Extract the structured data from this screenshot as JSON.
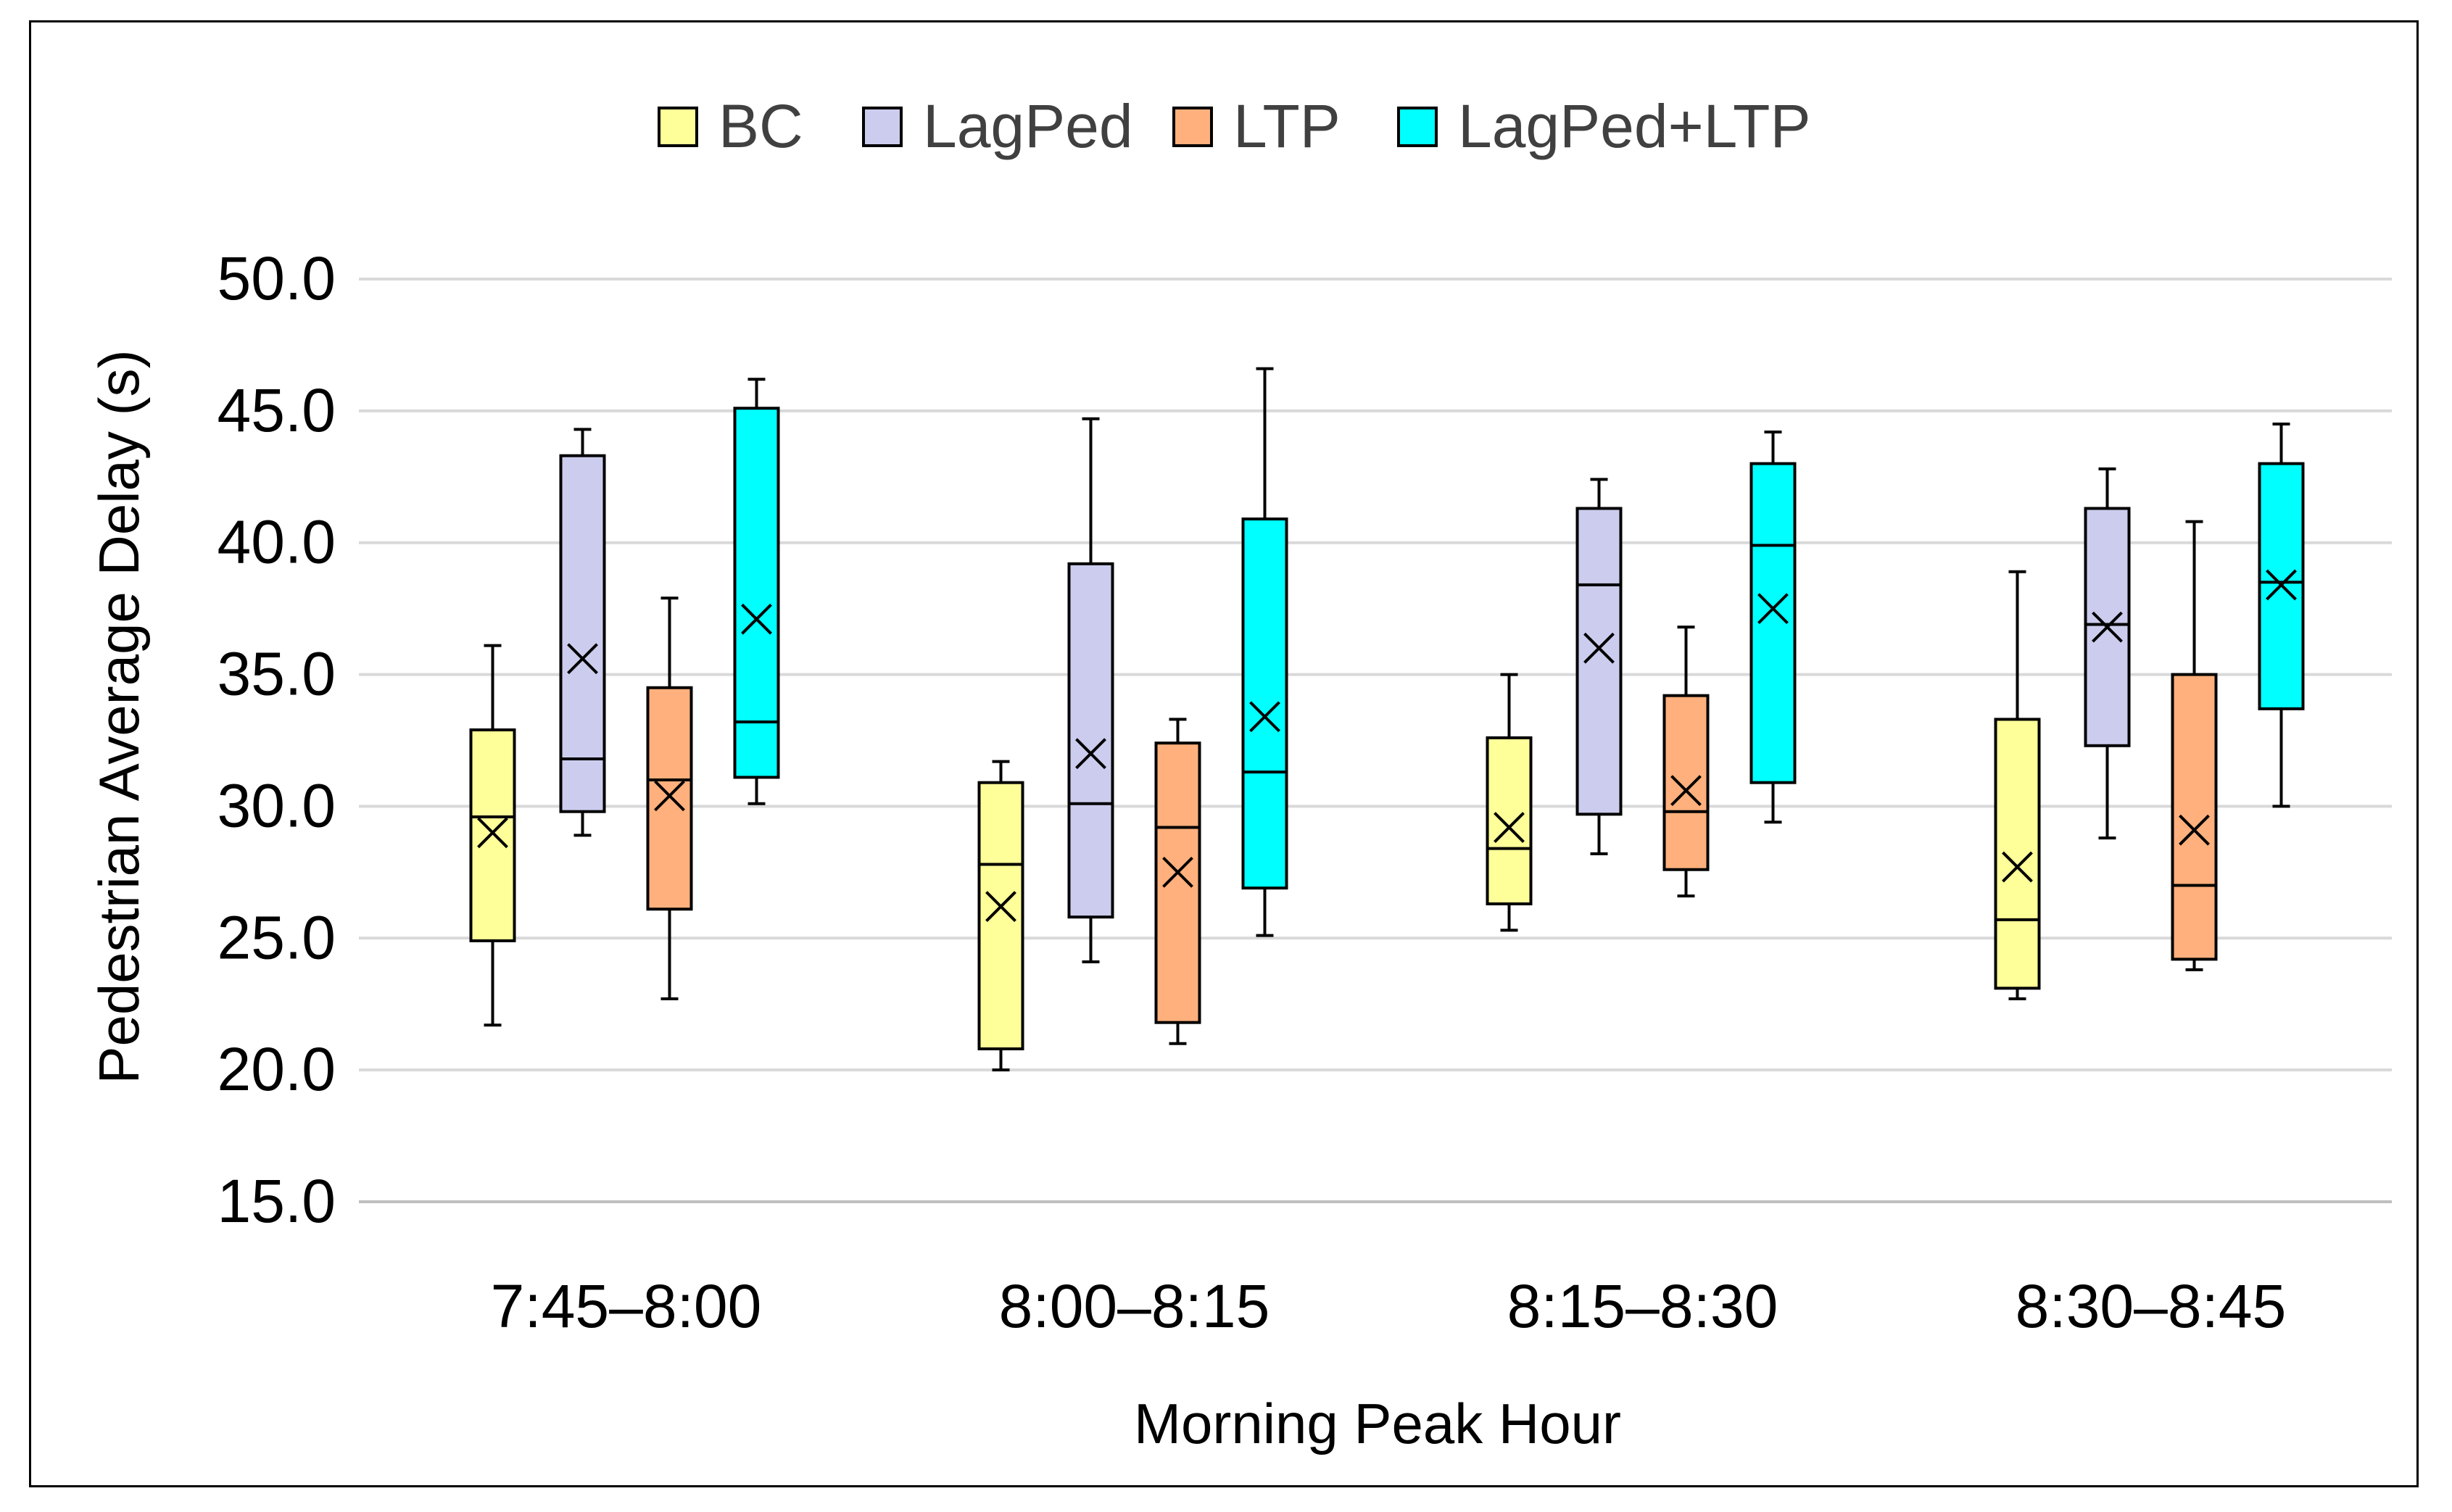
{
  "chart_data": {
    "type": "box",
    "title": "",
    "xlabel": "Morning Peak Hour",
    "ylabel": "Pedestrian Average Delay (s)",
    "ylim": [
      15,
      50
    ],
    "yticks": [
      "15.0",
      "20.0",
      "25.0",
      "30.0",
      "35.0",
      "40.0",
      "45.0",
      "50.0"
    ],
    "ytick_values": [
      15,
      20,
      25,
      30,
      35,
      40,
      45,
      50
    ],
    "grid": true,
    "legend_position": "top-center",
    "categories": [
      "7:45–8:00",
      "8:00–8:15",
      "8:15–8:30",
      "8:30–8:45"
    ],
    "series": [
      {
        "name": "BC",
        "color": "#FFFF99",
        "boxes": [
          {
            "min": 21.7,
            "q1": 24.9,
            "median": 29.6,
            "q3": 32.9,
            "max": 36.1,
            "mean": 29.0
          },
          {
            "min": 20.0,
            "q1": 20.8,
            "median": 27.8,
            "q3": 30.9,
            "max": 31.7,
            "mean": 26.2
          },
          {
            "min": 25.3,
            "q1": 26.3,
            "median": 28.4,
            "q3": 32.6,
            "max": 35.0,
            "mean": 29.2
          },
          {
            "min": 22.7,
            "q1": 23.1,
            "median": 25.7,
            "q3": 33.3,
            "max": 38.9,
            "mean": 27.7
          }
        ]
      },
      {
        "name": "LagPed",
        "color": "#CCCCEE",
        "boxes": [
          {
            "min": 28.9,
            "q1": 29.8,
            "median": 31.8,
            "q3": 43.3,
            "max": 44.3,
            "mean": 35.6
          },
          {
            "min": 24.1,
            "q1": 25.8,
            "median": 30.1,
            "q3": 39.2,
            "max": 44.7,
            "mean": 32.0
          },
          {
            "min": 28.2,
            "q1": 29.7,
            "median": 38.4,
            "q3": 41.3,
            "max": 42.4,
            "mean": 36.0
          },
          {
            "min": 28.8,
            "q1": 32.3,
            "median": 36.9,
            "q3": 41.3,
            "max": 42.8,
            "mean": 36.8
          }
        ]
      },
      {
        "name": "LTP",
        "color": "#FFB07C",
        "boxes": [
          {
            "min": 22.7,
            "q1": 26.1,
            "median": 31.0,
            "q3": 34.5,
            "max": 37.9,
            "mean": 30.4
          },
          {
            "min": 21.0,
            "q1": 21.8,
            "median": 29.2,
            "q3": 32.4,
            "max": 33.3,
            "mean": 27.5
          },
          {
            "min": 26.6,
            "q1": 27.6,
            "median": 29.8,
            "q3": 34.2,
            "max": 36.8,
            "mean": 30.6
          },
          {
            "min": 23.8,
            "q1": 24.2,
            "median": 27.0,
            "q3": 35.0,
            "max": 40.8,
            "mean": 29.1
          }
        ]
      },
      {
        "name": "LagPed+LTP",
        "color": "#00FFFF",
        "boxes": [
          {
            "min": 30.1,
            "q1": 31.1,
            "median": 33.2,
            "q3": 45.1,
            "max": 46.2,
            "mean": 37.1
          },
          {
            "min": 25.1,
            "q1": 26.9,
            "median": 31.3,
            "q3": 40.9,
            "max": 46.6,
            "mean": 33.4
          },
          {
            "min": 29.4,
            "q1": 30.9,
            "median": 39.9,
            "q3": 43.0,
            "max": 44.2,
            "mean": 37.5
          },
          {
            "min": 30.0,
            "q1": 33.7,
            "median": 38.5,
            "q3": 43.0,
            "max": 44.5,
            "mean": 38.4
          }
        ]
      }
    ]
  }
}
